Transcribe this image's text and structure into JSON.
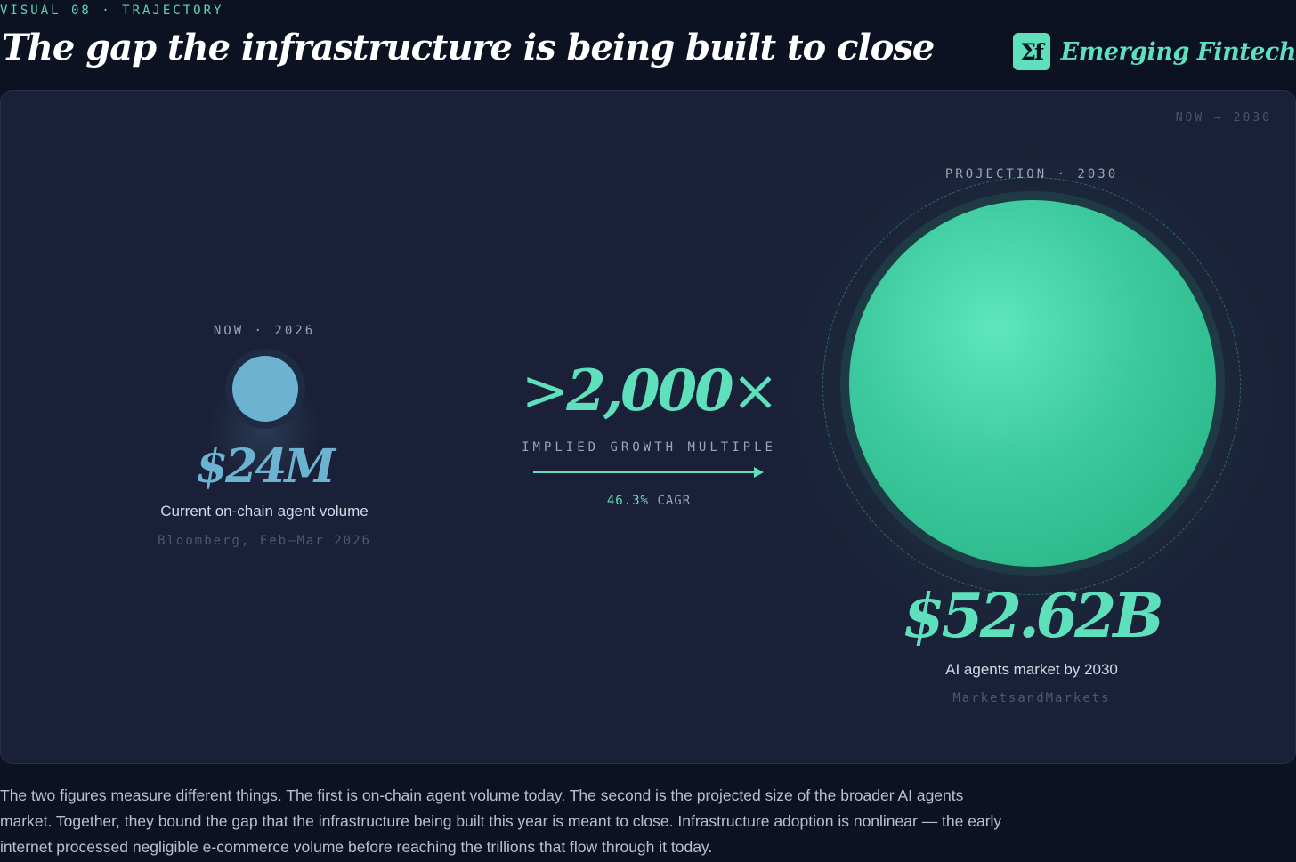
{
  "header": {
    "kicker": "VISUAL 08 · TRAJECTORY",
    "title": "The gap the infrastructure is being built to close",
    "brand_mark": "Σf",
    "brand_name": "Emerging Fintech"
  },
  "panel": {
    "corner_label": "NOW → 2030",
    "current": {
      "label": "NOW · 2026",
      "value": "$24M",
      "caption": "Current on-chain agent volume",
      "source": "Bloomberg, Feb–Mar 2026"
    },
    "multiple": {
      "prefix": ">",
      "value": "2,000",
      "suffix": "×",
      "label": "IMPLIED GROWTH MULTIPLE",
      "cagr_value": "46.3%",
      "cagr_label": "CAGR"
    },
    "projection": {
      "label": "PROJECTION · 2030",
      "value": "$52.62B",
      "caption": "AI agents market by 2030",
      "source": "MarketsandMarkets"
    }
  },
  "colors": {
    "accent_teal": "#5fe0bd",
    "current_blue": "#6cb3d1",
    "panel_bg": "#1a2037",
    "page_bg": "#0c1222"
  },
  "body_text": "The two figures measure different things. The first is on-chain agent volume today. The second is the projected size of the broader AI agents market. Together, they bound the gap that the infrastructure being built this year is meant to close. Infrastructure adoption is nonlinear — the early internet processed negligible e-commerce volume before reaching the trillions that flow through it today."
}
